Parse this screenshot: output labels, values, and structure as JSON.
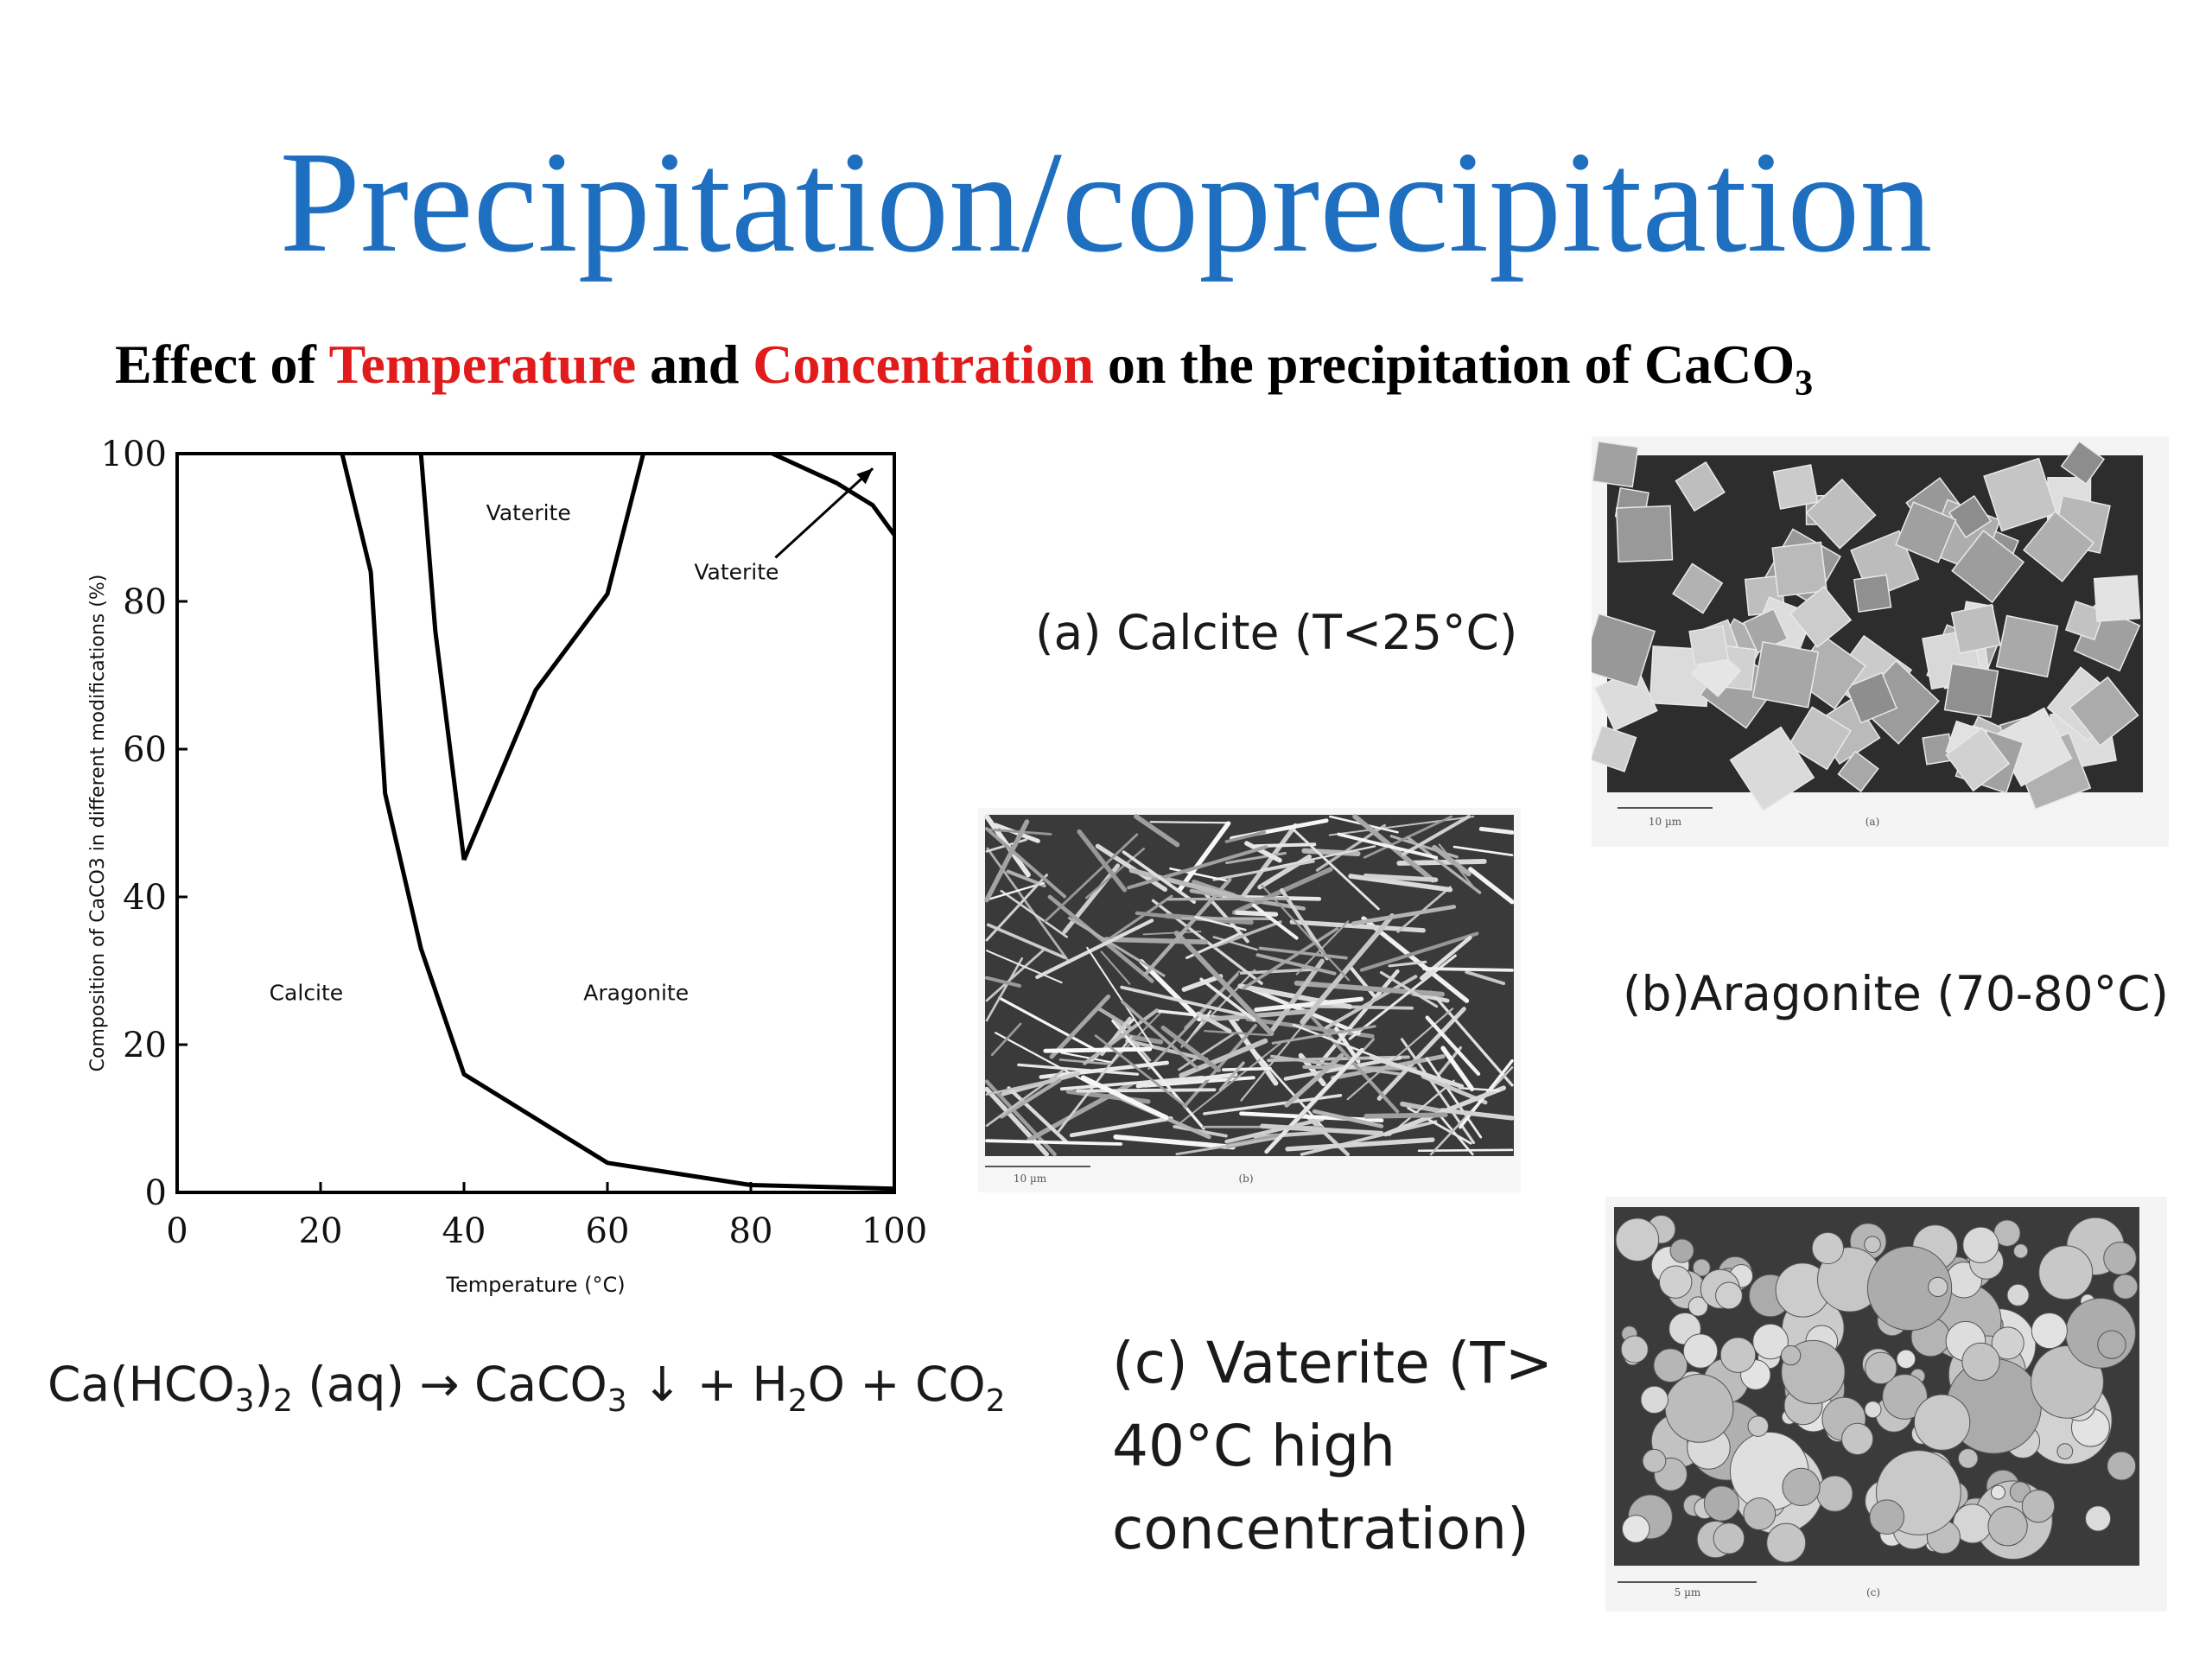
{
  "slide": {
    "title": "Precipitation/coprecipitation",
    "title_color": "#1f6fc1",
    "subtitle": {
      "prefix": "Effect of ",
      "word1": "Temperature",
      "mid": " and ",
      "word2": "Concentration",
      "suffix": " on the precipitation of CaCO",
      "suffix_sub": "3",
      "highlight_color": "#e11b1b"
    }
  },
  "chart_data": {
    "type": "line",
    "xlabel": "Temperature (°C)",
    "ylabel": "Composition of CaCO3 in different modifications (%)",
    "xlim": [
      0,
      100
    ],
    "ylim": [
      0,
      100
    ],
    "x_ticks": [
      "0",
      "20",
      "40",
      "60",
      "80",
      "100"
    ],
    "y_ticks": [
      "0",
      "20",
      "40",
      "60",
      "80",
      "100"
    ],
    "curves": [
      {
        "name": "calcite-boundary",
        "points": [
          [
            23,
            100
          ],
          [
            27,
            84
          ],
          [
            29,
            54
          ],
          [
            34,
            33
          ],
          [
            40,
            16
          ],
          [
            50,
            10
          ],
          [
            60,
            4
          ],
          [
            80,
            1
          ],
          [
            100,
            0.5
          ]
        ]
      },
      {
        "name": "vaterite-left-boundary",
        "points": [
          [
            34,
            100
          ],
          [
            36,
            76
          ],
          [
            40,
            45
          ]
        ]
      },
      {
        "name": "vaterite-right-boundary",
        "points": [
          [
            40,
            45
          ],
          [
            50,
            68
          ],
          [
            60,
            81
          ],
          [
            65,
            100
          ]
        ]
      },
      {
        "name": "vaterite-high-temp-boundary",
        "points": [
          [
            83,
            100
          ],
          [
            92,
            96
          ],
          [
            97,
            93
          ],
          [
            100,
            89
          ]
        ]
      }
    ],
    "annotations": [
      {
        "text": "Vaterite",
        "x": 49,
        "y": 91
      },
      {
        "text": "Vaterite",
        "x": 78,
        "y": 83,
        "arrow_to": [
          97,
          98
        ]
      },
      {
        "text": "Calcite",
        "x": 18,
        "y": 26
      },
      {
        "text": "Aragonite",
        "x": 64,
        "y": 26
      }
    ]
  },
  "equation": {
    "parts": [
      "Ca(HCO",
      "3",
      ")",
      "2",
      " (aq) ",
      "→",
      " CaCO",
      "3",
      " ",
      "↓",
      " + H",
      "2",
      "O + CO",
      "2"
    ]
  },
  "captions": {
    "a": "(a) Calcite (T<25°C)",
    "b": "(b)Aragonite (70-80°C)",
    "c_line1": "(c) Vaterite (T>",
    "c_line2": "40°C high",
    "c_line3": "concentration)"
  },
  "micrographs": {
    "a": {
      "scale": "10 µm",
      "label": "(a)"
    },
    "b": {
      "scale": "10 µm",
      "label": "(b)"
    },
    "c": {
      "scale": "5 µm",
      "label": "(c)"
    }
  }
}
